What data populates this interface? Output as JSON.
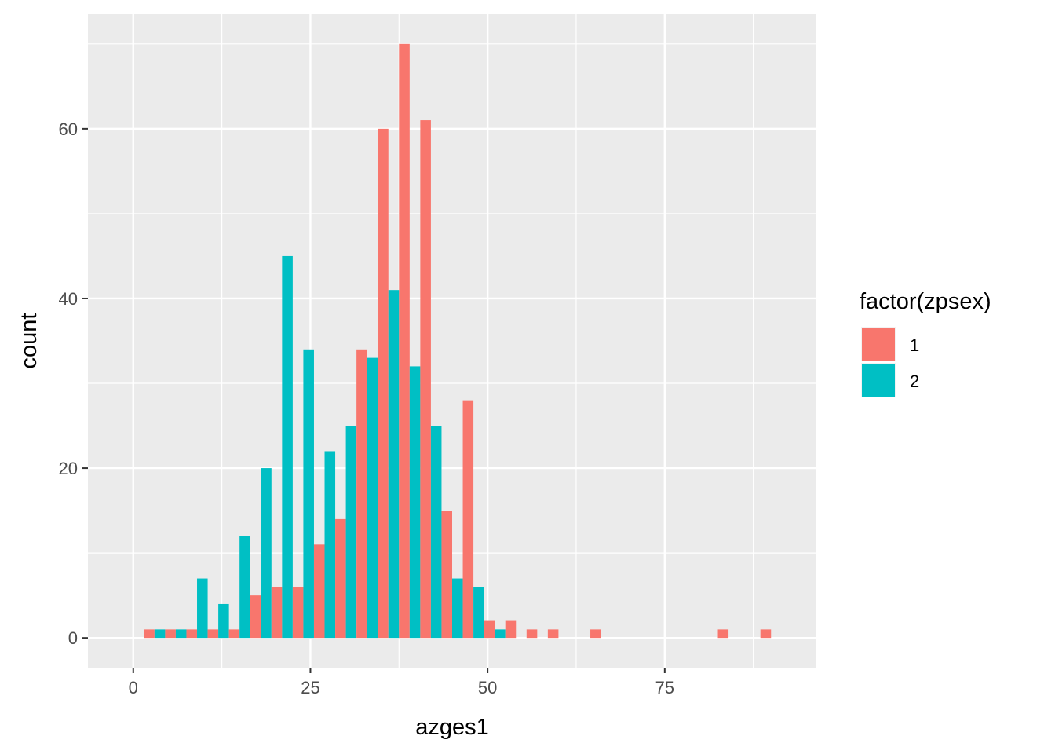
{
  "chart_data": {
    "type": "bar",
    "subtype": "histogram-dodged",
    "title": "",
    "xlabel": "azges1",
    "ylabel": "count",
    "xlim": [
      -6.4,
      96.4
    ],
    "ylim": [
      -3.5,
      73.5
    ],
    "x_ticks": [
      0,
      25,
      50,
      75
    ],
    "y_ticks": [
      0,
      20,
      40,
      60
    ],
    "x_tick_labels": [
      "0",
      "25",
      "50",
      "75"
    ],
    "y_tick_labels": [
      "0",
      "20",
      "40",
      "60"
    ],
    "bin_width": 3.0,
    "bin_centers": [
      3,
      6,
      9,
      12,
      15,
      18,
      21,
      24,
      27,
      30,
      33,
      36,
      39,
      42,
      45,
      48,
      51,
      54,
      57,
      60,
      63,
      66,
      69,
      72,
      75,
      78,
      81,
      84,
      87,
      90
    ],
    "legend_title": "factor(zpsex)",
    "legend_position": "right",
    "grid": true,
    "background": "#ebebeb",
    "series": [
      {
        "name": "1",
        "color": "#f8766d",
        "values": [
          1,
          1,
          1,
          1,
          1,
          5,
          6,
          6,
          11,
          14,
          34,
          60,
          70,
          61,
          15,
          28,
          2,
          2,
          1,
          1,
          0,
          1,
          0,
          0,
          0,
          0,
          0,
          1,
          0,
          1
        ]
      },
      {
        "name": "2",
        "color": "#00bfc4",
        "values": [
          1,
          1,
          7,
          4,
          12,
          20,
          45,
          34,
          22,
          25,
          33,
          41,
          32,
          25,
          7,
          6,
          1,
          0,
          0,
          0,
          0,
          0,
          0,
          0,
          0,
          0,
          0,
          0,
          0,
          0
        ]
      }
    ]
  }
}
